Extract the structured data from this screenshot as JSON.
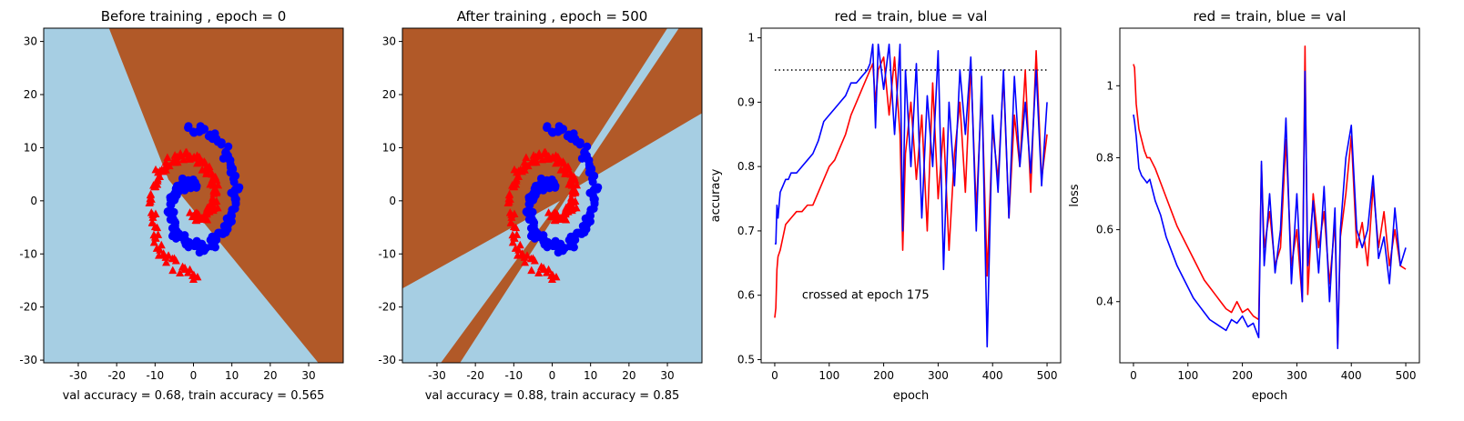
{
  "colors": {
    "region_blue": "#a6cee3",
    "region_brown": "#b15928",
    "train": "#ff0000",
    "val": "#0000ff"
  },
  "chart_data": [
    {
      "type": "scatter",
      "title": "Before training , epoch = 0",
      "xlabel": "val accuracy = 0.68, train accuracy = 0.565",
      "ylabel": "",
      "xlim": [
        -39,
        39
      ],
      "ylim": [
        -30.5,
        32.5
      ],
      "xticks": [
        -30,
        -20,
        -10,
        0,
        10,
        20,
        30
      ],
      "yticks": [
        -30,
        -20,
        -10,
        0,
        10,
        20,
        30
      ],
      "decision_regions": {
        "background": "blue",
        "brown_polygons": [
          [
            [
              -22,
              32.5
            ],
            [
              39,
              32.5
            ],
            [
              39,
              -30.5
            ],
            [
              32.5,
              -30.5
            ],
            [
              -6.5,
              4
            ]
          ]
        ],
        "blue_polygons": []
      },
      "series": [
        {
          "label": "train",
          "marker": "triangle",
          "spiral": {
            "turn_offset": 3.14159,
            "scale": 0.55,
            "start": 1.6,
            "end": 8.0
          }
        },
        {
          "label": "val",
          "marker": "circle",
          "spiral": {
            "turn_offset": 0.0,
            "scale": 0.55,
            "start": 1.6,
            "end": 8.0
          }
        }
      ]
    },
    {
      "type": "scatter",
      "title": "After training , epoch = 500",
      "xlabel": "val accuracy = 0.88, train accuracy = 0.85",
      "ylabel": "",
      "xlim": [
        -39,
        39
      ],
      "ylim": [
        -30.5,
        32.5
      ],
      "xticks": [
        -30,
        -20,
        -10,
        0,
        10,
        20,
        30
      ],
      "yticks": [
        -30,
        -20,
        -10,
        0,
        10,
        20,
        30
      ],
      "decision_regions": {
        "background": "brown",
        "brown_polygons": [],
        "blue_polygons": [
          [
            [
              -39,
              -30.5
            ],
            [
              -29,
              -30.5
            ],
            [
              2,
              0
            ],
            [
              -39,
              -16.5
            ]
          ],
          [
            [
              -24,
              -30.5
            ],
            [
              39,
              -30.5
            ],
            [
              39,
              16.5
            ],
            [
              5,
              2
            ]
          ],
          [
            [
              5.5,
              5
            ],
            [
              30,
              32.5
            ],
            [
              33,
              32.5
            ],
            [
              7,
              4.5
            ]
          ]
        ]
      },
      "series": [
        {
          "label": "train",
          "marker": "triangle",
          "spiral": {
            "turn_offset": 3.14159,
            "scale": 0.55,
            "start": 1.6,
            "end": 8.0
          }
        },
        {
          "label": "val",
          "marker": "circle",
          "spiral": {
            "turn_offset": 0.0,
            "scale": 0.55,
            "start": 1.6,
            "end": 8.0
          }
        }
      ]
    },
    {
      "type": "line",
      "title": "red = train, blue = val",
      "xlabel": "epoch",
      "ylabel": "accuracy",
      "xlim": [
        -25,
        525
      ],
      "ylim": [
        0.495,
        1.015
      ],
      "xticks": [
        0,
        100,
        200,
        300,
        400,
        500
      ],
      "yticks": [
        0.5,
        0.6,
        0.7,
        0.8,
        0.9,
        1.0
      ],
      "hline": {
        "y": 0.95,
        "x0": 0,
        "x1": 500,
        "style": "dotted"
      },
      "annotation": {
        "text": "crossed at epoch 175",
        "x": 50,
        "y": 0.6
      },
      "series": [
        {
          "name": "train",
          "color": "red",
          "x": [
            0,
            2,
            4,
            6,
            10,
            15,
            20,
            25,
            30,
            40,
            50,
            60,
            70,
            80,
            90,
            100,
            110,
            120,
            130,
            140,
            150,
            160,
            170,
            175,
            180,
            185,
            190,
            200,
            210,
            220,
            230,
            235,
            240,
            250,
            260,
            270,
            280,
            290,
            300,
            310,
            320,
            330,
            340,
            350,
            360,
            370,
            380,
            390,
            400,
            410,
            420,
            430,
            440,
            450,
            460,
            470,
            480,
            490,
            500
          ],
          "y": [
            0.565,
            0.58,
            0.64,
            0.66,
            0.67,
            0.69,
            0.71,
            0.715,
            0.72,
            0.73,
            0.73,
            0.74,
            0.74,
            0.76,
            0.78,
            0.8,
            0.81,
            0.83,
            0.85,
            0.88,
            0.9,
            0.92,
            0.94,
            0.95,
            0.96,
            0.9,
            0.95,
            0.97,
            0.88,
            0.97,
            0.85,
            0.67,
            0.82,
            0.9,
            0.78,
            0.88,
            0.7,
            0.93,
            0.75,
            0.86,
            0.67,
            0.82,
            0.9,
            0.76,
            0.96,
            0.73,
            0.92,
            0.63,
            0.86,
            0.78,
            0.94,
            0.72,
            0.88,
            0.8,
            0.95,
            0.76,
            0.98,
            0.78,
            0.85
          ]
        },
        {
          "name": "val",
          "color": "blue",
          "x": [
            0,
            2,
            4,
            6,
            10,
            15,
            20,
            25,
            30,
            40,
            50,
            60,
            70,
            80,
            90,
            100,
            110,
            120,
            130,
            140,
            150,
            160,
            170,
            175,
            180,
            185,
            190,
            200,
            210,
            220,
            230,
            235,
            240,
            250,
            260,
            270,
            280,
            290,
            300,
            310,
            320,
            330,
            340,
            350,
            360,
            370,
            380,
            390,
            400,
            410,
            420,
            430,
            440,
            450,
            460,
            470,
            480,
            490,
            500
          ],
          "y": [
            0.68,
            0.68,
            0.74,
            0.72,
            0.76,
            0.77,
            0.78,
            0.78,
            0.79,
            0.79,
            0.8,
            0.81,
            0.82,
            0.84,
            0.87,
            0.88,
            0.89,
            0.9,
            0.91,
            0.93,
            0.93,
            0.94,
            0.95,
            0.96,
            0.99,
            0.86,
            0.99,
            0.92,
            0.99,
            0.85,
            0.99,
            0.7,
            0.95,
            0.8,
            0.96,
            0.72,
            0.91,
            0.8,
            0.98,
            0.64,
            0.9,
            0.77,
            0.95,
            0.85,
            0.97,
            0.7,
            0.94,
            0.52,
            0.88,
            0.76,
            0.95,
            0.72,
            0.94,
            0.8,
            0.9,
            0.79,
            0.95,
            0.77,
            0.9
          ]
        }
      ]
    },
    {
      "type": "line",
      "title": "red = train, blue = val",
      "xlabel": "epoch",
      "ylabel": "loss",
      "xlim": [
        -25,
        525
      ],
      "ylim": [
        0.23,
        1.16
      ],
      "xticks": [
        0,
        100,
        200,
        300,
        400,
        500
      ],
      "yticks": [
        0.4,
        0.6,
        0.8,
        1.0
      ],
      "series": [
        {
          "name": "train",
          "color": "red",
          "x": [
            0,
            2,
            5,
            10,
            15,
            20,
            25,
            30,
            40,
            50,
            60,
            70,
            80,
            90,
            100,
            110,
            120,
            130,
            140,
            150,
            160,
            170,
            180,
            190,
            200,
            210,
            220,
            230,
            235,
            240,
            250,
            260,
            270,
            280,
            290,
            300,
            310,
            315,
            320,
            330,
            340,
            350,
            360,
            370,
            375,
            380,
            390,
            400,
            410,
            420,
            430,
            440,
            450,
            460,
            470,
            480,
            490,
            500
          ],
          "y": [
            1.06,
            1.05,
            0.95,
            0.88,
            0.85,
            0.82,
            0.8,
            0.8,
            0.77,
            0.73,
            0.69,
            0.65,
            0.61,
            0.58,
            0.55,
            0.52,
            0.49,
            0.46,
            0.44,
            0.42,
            0.4,
            0.38,
            0.37,
            0.4,
            0.37,
            0.38,
            0.36,
            0.35,
            0.78,
            0.55,
            0.65,
            0.5,
            0.55,
            0.85,
            0.5,
            0.6,
            0.4,
            1.11,
            0.42,
            0.7,
            0.55,
            0.65,
            0.45,
            0.62,
            0.28,
            0.58,
            0.7,
            0.86,
            0.55,
            0.62,
            0.5,
            0.72,
            0.55,
            0.65,
            0.5,
            0.6,
            0.5,
            0.49
          ]
        },
        {
          "name": "val",
          "color": "blue",
          "x": [
            0,
            2,
            5,
            10,
            15,
            20,
            25,
            30,
            40,
            50,
            60,
            70,
            80,
            90,
            100,
            110,
            120,
            130,
            140,
            150,
            160,
            170,
            180,
            190,
            200,
            210,
            220,
            230,
            235,
            240,
            250,
            260,
            270,
            280,
            290,
            300,
            310,
            315,
            320,
            330,
            340,
            350,
            360,
            370,
            375,
            380,
            390,
            400,
            410,
            420,
            430,
            440,
            450,
            460,
            470,
            480,
            490,
            500
          ],
          "y": [
            0.92,
            0.9,
            0.86,
            0.77,
            0.75,
            0.74,
            0.73,
            0.74,
            0.68,
            0.64,
            0.58,
            0.54,
            0.5,
            0.47,
            0.44,
            0.41,
            0.39,
            0.37,
            0.35,
            0.34,
            0.33,
            0.32,
            0.35,
            0.34,
            0.36,
            0.33,
            0.34,
            0.3,
            0.79,
            0.5,
            0.7,
            0.48,
            0.6,
            0.91,
            0.45,
            0.7,
            0.4,
            1.04,
            0.5,
            0.68,
            0.48,
            0.72,
            0.4,
            0.66,
            0.27,
            0.6,
            0.8,
            0.89,
            0.6,
            0.55,
            0.6,
            0.75,
            0.52,
            0.58,
            0.45,
            0.66,
            0.5,
            0.55
          ]
        }
      ]
    }
  ]
}
